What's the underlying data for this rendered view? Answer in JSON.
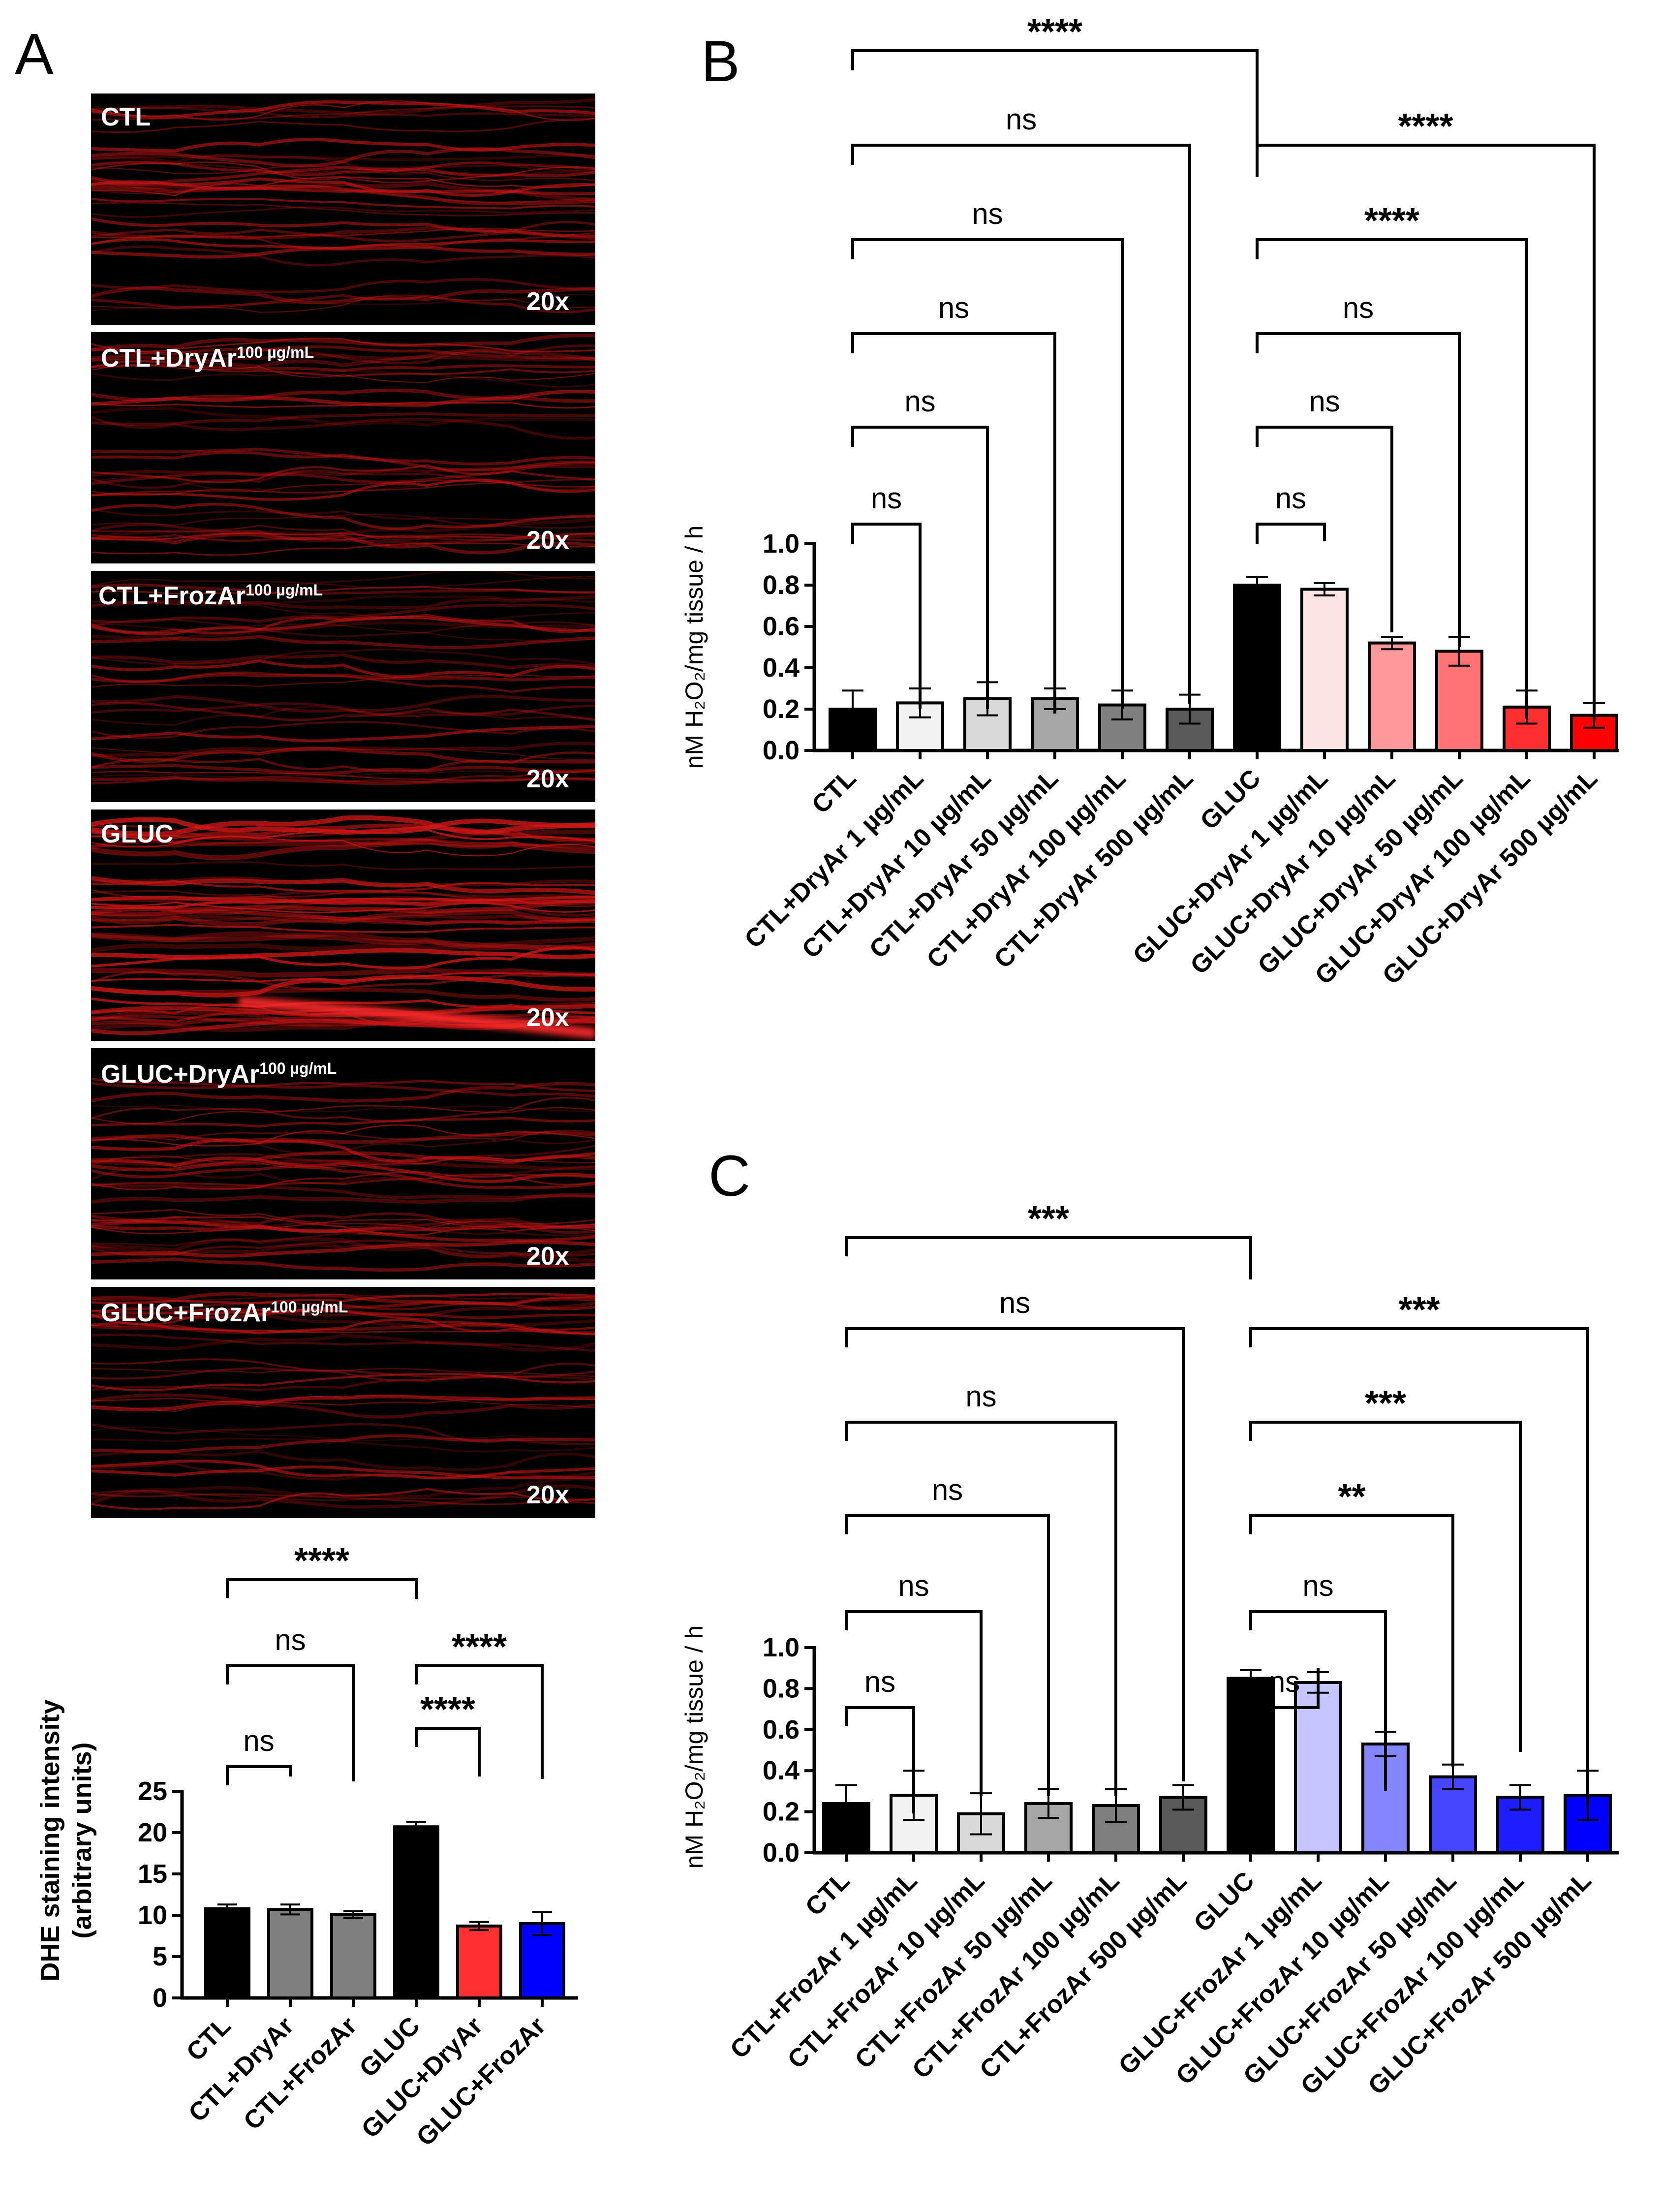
{
  "colors": {
    "black": "#000000",
    "red_fluor": "#d21616",
    "panelA_bars": [
      "#000000",
      "#7f7f7f",
      "#7f7f7f",
      "#000000",
      "#ff3030",
      "#0000ff"
    ],
    "panelB_bars": [
      "#000000",
      "#f2f2f2",
      "#d9d9d9",
      "#a6a6a6",
      "#7f7f7f",
      "#595959",
      "#000000",
      "#ffe4e4",
      "#ff9999",
      "#ff7373",
      "#ff2f2f",
      "#ff0000"
    ],
    "panelC_bars": [
      "#000000",
      "#f2f2f2",
      "#d9d9d9",
      "#a6a6a6",
      "#7f7f7f",
      "#595959",
      "#000000",
      "#c6c6ff",
      "#8585ff",
      "#4646ff",
      "#1d1dff",
      "#0000ff"
    ]
  },
  "panel_labels": {
    "a": "A",
    "b": "B",
    "c": "C"
  },
  "images": [
    {
      "label": "CTL",
      "sup": "",
      "mag": "20x"
    },
    {
      "label": "CTL+DryAr",
      "sup": "100 µg/mL",
      "mag": "20x"
    },
    {
      "label": "CTL+FrozAr",
      "sup": "100 µg/mL",
      "mag": "20x"
    },
    {
      "label": "GLUC",
      "sup": "",
      "mag": "20x"
    },
    {
      "label": "GLUC+DryAr",
      "sup": "100 µg/mL",
      "mag": "20x"
    },
    {
      "label": "GLUC+FrozAr",
      "sup": "100 µg/mL",
      "mag": "20x"
    }
  ],
  "ylabel_b": "nM H₂O₂/mg tissue / h",
  "ylabel_c": "nM H₂O₂/mg tissue / h",
  "chart_data": [
    {
      "id": "A",
      "type": "bar",
      "ylabel": [
        "DHE staining intensity",
        "(arbitrary units)"
      ],
      "ylim": [
        0,
        25
      ],
      "yticks": [
        "0",
        "5",
        "10",
        "15",
        "20",
        "25"
      ],
      "categories": [
        "CTL",
        "CTL+DryAr",
        "CTL+FrozAr",
        "GLUC",
        "GLUC+DryAr",
        "GLUC+FrozAr"
      ],
      "values": [
        10.8,
        10.7,
        10.1,
        20.7,
        8.7,
        9.0
      ],
      "errors": [
        0.5,
        0.6,
        0.4,
        0.6,
        0.5,
        1.4
      ],
      "comparisons": [
        {
          "from": 0,
          "to": 3,
          "label": "****"
        },
        {
          "from": 0,
          "to": 2,
          "label": "ns"
        },
        {
          "from": 0,
          "to": 1,
          "label": "ns"
        },
        {
          "from": 3,
          "to": 5,
          "label": "****"
        },
        {
          "from": 3,
          "to": 4,
          "label": "****"
        }
      ]
    },
    {
      "id": "B",
      "type": "bar",
      "ylabel": "nM H₂O₂/mg tissue / h",
      "ylim": [
        0,
        1.0
      ],
      "yticks": [
        "0.0",
        "0.2",
        "0.4",
        "0.6",
        "0.8",
        "1.0"
      ],
      "categories": [
        "CTL",
        "CTL+DryAr 1 µg/mL",
        "CTL+DryAr 10 µg/mL",
        "CTL+DryAr 50 µg/mL",
        "CTL+DryAr 100 µg/mL",
        "CTL+DryAr 500 µg/mL",
        "GLUC",
        "GLUC+DryAr 1 µg/mL",
        "GLUC+DryAr 10 µg/mL",
        "GLUC+DryAr 50 µg/mL",
        "GLUC+DryAr 100 µg/mL",
        "GLUC+DryAr 500 µg/mL"
      ],
      "values": [
        0.2,
        0.23,
        0.25,
        0.25,
        0.22,
        0.2,
        0.8,
        0.78,
        0.52,
        0.48,
        0.21,
        0.17
      ],
      "errors": [
        0.09,
        0.07,
        0.08,
        0.05,
        0.07,
        0.07,
        0.04,
        0.03,
        0.03,
        0.07,
        0.08,
        0.06
      ],
      "comparisons": [
        {
          "from": 0,
          "to": 6,
          "label": "****"
        },
        {
          "from": 0,
          "to": 5,
          "label": "ns"
        },
        {
          "from": 0,
          "to": 4,
          "label": "ns"
        },
        {
          "from": 0,
          "to": 3,
          "label": "ns"
        },
        {
          "from": 0,
          "to": 2,
          "label": "ns"
        },
        {
          "from": 0,
          "to": 1,
          "label": "ns"
        },
        {
          "from": 6,
          "to": 11,
          "label": "****"
        },
        {
          "from": 6,
          "to": 10,
          "label": "****"
        },
        {
          "from": 6,
          "to": 9,
          "label": "ns"
        },
        {
          "from": 6,
          "to": 8,
          "label": "ns"
        },
        {
          "from": 6,
          "to": 7,
          "label": "ns"
        }
      ]
    },
    {
      "id": "C",
      "type": "bar",
      "ylabel": "nM H₂O₂/mg tissue / h",
      "ylim": [
        0,
        1.0
      ],
      "yticks": [
        "0.0",
        "0.2",
        "0.4",
        "0.6",
        "0.8",
        "1.0"
      ],
      "categories": [
        "CTL",
        "CTL+FrozAr 1 µg/mL",
        "CTL+FrozAr 10 µg/mL",
        "CTL+FrozAr 50 µg/mL",
        "CTL+FrozAr 100 µg/mL",
        "CTL+FrozAr 500 µg/mL",
        "GLUC",
        "GLUC+FrozAr 1 µg/mL",
        "GLUC+FrozAr 10 µg/mL",
        "GLUC+FrozAr 50 µg/mL",
        "GLUC+FrozAr 100 µg/mL",
        "GLUC+FrozAr 500 µg/mL"
      ],
      "values": [
        0.24,
        0.28,
        0.19,
        0.24,
        0.23,
        0.27,
        0.85,
        0.83,
        0.53,
        0.37,
        0.27,
        0.28
      ],
      "errors": [
        0.09,
        0.12,
        0.1,
        0.07,
        0.08,
        0.06,
        0.04,
        0.05,
        0.06,
        0.06,
        0.06,
        0.12
      ],
      "comparisons": [
        {
          "from": 0,
          "to": 6,
          "label": "***"
        },
        {
          "from": 0,
          "to": 5,
          "label": "ns"
        },
        {
          "from": 0,
          "to": 4,
          "label": "ns"
        },
        {
          "from": 0,
          "to": 3,
          "label": "ns"
        },
        {
          "from": 0,
          "to": 2,
          "label": "ns"
        },
        {
          "from": 0,
          "to": 1,
          "label": "ns"
        },
        {
          "from": 6,
          "to": 11,
          "label": "***"
        },
        {
          "from": 6,
          "to": 10,
          "label": "***"
        },
        {
          "from": 6,
          "to": 9,
          "label": "**"
        },
        {
          "from": 6,
          "to": 8,
          "label": "ns"
        },
        {
          "from": 6,
          "to": 7,
          "label": "ns"
        }
      ]
    }
  ]
}
